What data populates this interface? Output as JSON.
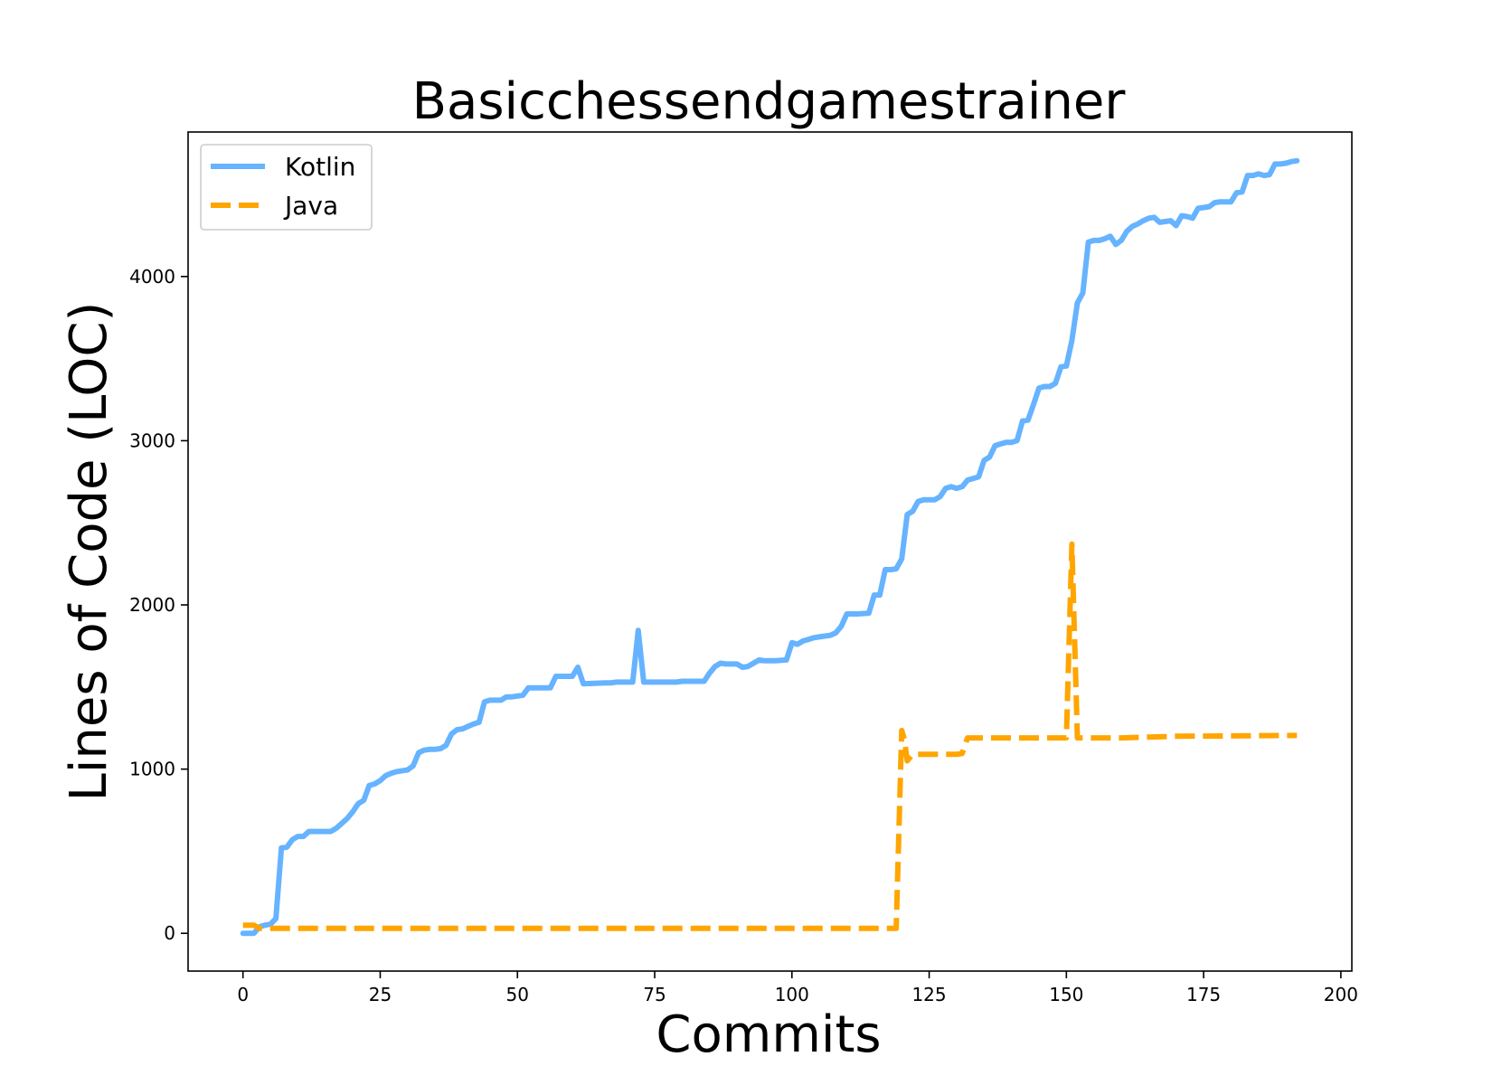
{
  "chart_data": {
    "type": "line",
    "title": "Basicchessendgamestrainer",
    "xlabel": "Commits",
    "ylabel": "Lines of Code (LOC)",
    "xlim": [
      -10,
      202
    ],
    "ylim": [
      -230,
      4880
    ],
    "xticks": [
      0,
      25,
      50,
      75,
      100,
      125,
      150,
      175,
      200
    ],
    "yticks": [
      0,
      1000,
      2000,
      3000,
      4000
    ],
    "grid": false,
    "legend_position": "top-left",
    "series": [
      {
        "name": "Kotlin",
        "color": "#66b3ff",
        "style": "solid",
        "points": [
          [
            0,
            0
          ],
          [
            2,
            0
          ],
          [
            3,
            40
          ],
          [
            4,
            50
          ],
          [
            5,
            55
          ],
          [
            6,
            90
          ],
          [
            7,
            520
          ],
          [
            8,
            525
          ],
          [
            9,
            570
          ],
          [
            10,
            590
          ],
          [
            11,
            590
          ],
          [
            12,
            620
          ],
          [
            14,
            620
          ],
          [
            16,
            620
          ],
          [
            17,
            640
          ],
          [
            18,
            670
          ],
          [
            19,
            700
          ],
          [
            20,
            740
          ],
          [
            21,
            790
          ],
          [
            22,
            810
          ],
          [
            23,
            900
          ],
          [
            24,
            910
          ],
          [
            25,
            930
          ],
          [
            26,
            960
          ],
          [
            27,
            975
          ],
          [
            28,
            985
          ],
          [
            29,
            990
          ],
          [
            30,
            995
          ],
          [
            31,
            1020
          ],
          [
            32,
            1100
          ],
          [
            33,
            1115
          ],
          [
            34,
            1120
          ],
          [
            35,
            1120
          ],
          [
            36,
            1125
          ],
          [
            37,
            1145
          ],
          [
            38,
            1215
          ],
          [
            39,
            1240
          ],
          [
            40,
            1245
          ],
          [
            41,
            1260
          ],
          [
            42,
            1275
          ],
          [
            43,
            1285
          ],
          [
            44,
            1410
          ],
          [
            45,
            1420
          ],
          [
            46,
            1420
          ],
          [
            47,
            1420
          ],
          [
            48,
            1440
          ],
          [
            49,
            1440
          ],
          [
            50,
            1445
          ],
          [
            51,
            1450
          ],
          [
            52,
            1495
          ],
          [
            53,
            1495
          ],
          [
            56,
            1495
          ],
          [
            57,
            1565
          ],
          [
            60,
            1565
          ],
          [
            61,
            1620
          ],
          [
            62,
            1520
          ],
          [
            66,
            1525
          ],
          [
            67,
            1525
          ],
          [
            68,
            1530
          ],
          [
            71,
            1530
          ],
          [
            72,
            1845
          ],
          [
            73,
            1530
          ],
          [
            79,
            1530
          ],
          [
            80,
            1535
          ],
          [
            84,
            1535
          ],
          [
            85,
            1585
          ],
          [
            86,
            1625
          ],
          [
            87,
            1645
          ],
          [
            88,
            1640
          ],
          [
            90,
            1640
          ],
          [
            91,
            1620
          ],
          [
            92,
            1625
          ],
          [
            93,
            1645
          ],
          [
            94,
            1665
          ],
          [
            95,
            1660
          ],
          [
            97,
            1660
          ],
          [
            99,
            1665
          ],
          [
            100,
            1770
          ],
          [
            101,
            1760
          ],
          [
            102,
            1780
          ],
          [
            103,
            1790
          ],
          [
            104,
            1800
          ],
          [
            105,
            1805
          ],
          [
            106,
            1810
          ],
          [
            107,
            1815
          ],
          [
            108,
            1830
          ],
          [
            109,
            1870
          ],
          [
            110,
            1945
          ],
          [
            112,
            1945
          ],
          [
            114,
            1950
          ],
          [
            115,
            2060
          ],
          [
            116,
            2060
          ],
          [
            117,
            2215
          ],
          [
            118,
            2215
          ],
          [
            119,
            2220
          ],
          [
            120,
            2280
          ],
          [
            121,
            2550
          ],
          [
            122,
            2570
          ],
          [
            123,
            2630
          ],
          [
            124,
            2640
          ],
          [
            126,
            2640
          ],
          [
            127,
            2660
          ],
          [
            128,
            2710
          ],
          [
            129,
            2720
          ],
          [
            130,
            2710
          ],
          [
            131,
            2720
          ],
          [
            132,
            2760
          ],
          [
            133,
            2770
          ],
          [
            134,
            2780
          ],
          [
            135,
            2880
          ],
          [
            136,
            2900
          ],
          [
            137,
            2970
          ],
          [
            138,
            2980
          ],
          [
            139,
            2990
          ],
          [
            140,
            2990
          ],
          [
            141,
            3000
          ],
          [
            142,
            3120
          ],
          [
            143,
            3125
          ],
          [
            144,
            3220
          ],
          [
            145,
            3320
          ],
          [
            146,
            3330
          ],
          [
            147,
            3330
          ],
          [
            148,
            3350
          ],
          [
            149,
            3450
          ],
          [
            150,
            3455
          ],
          [
            151,
            3610
          ],
          [
            152,
            3840
          ],
          [
            153,
            3900
          ],
          [
            154,
            4210
          ],
          [
            155,
            4220
          ],
          [
            156,
            4220
          ],
          [
            157,
            4230
          ],
          [
            158,
            4245
          ],
          [
            159,
            4195
          ],
          [
            160,
            4220
          ],
          [
            161,
            4275
          ],
          [
            162,
            4305
          ],
          [
            163,
            4320
          ],
          [
            164,
            4340
          ],
          [
            165,
            4355
          ],
          [
            166,
            4360
          ],
          [
            167,
            4330
          ],
          [
            168,
            4335
          ],
          [
            169,
            4340
          ],
          [
            170,
            4310
          ],
          [
            171,
            4370
          ],
          [
            172,
            4365
          ],
          [
            173,
            4355
          ],
          [
            174,
            4415
          ],
          [
            175,
            4420
          ],
          [
            176,
            4425
          ],
          [
            177,
            4450
          ],
          [
            178,
            4455
          ],
          [
            180,
            4455
          ],
          [
            181,
            4510
          ],
          [
            182,
            4515
          ],
          [
            183,
            4615
          ],
          [
            184,
            4615
          ],
          [
            185,
            4625
          ],
          [
            186,
            4615
          ],
          [
            187,
            4620
          ],
          [
            188,
            4685
          ],
          [
            189,
            4685
          ],
          [
            190,
            4690
          ],
          [
            191,
            4700
          ],
          [
            192,
            4705
          ]
        ]
      },
      {
        "name": "Java",
        "color": "#ffa500",
        "style": "dashed",
        "points": [
          [
            0,
            50
          ],
          [
            2,
            50
          ],
          [
            3,
            30
          ],
          [
            60,
            30
          ],
          [
            119,
            30
          ],
          [
            120,
            1235
          ],
          [
            120.5,
            1180
          ],
          [
            121,
            1050
          ],
          [
            122,
            1090
          ],
          [
            130,
            1090
          ],
          [
            131,
            1095
          ],
          [
            132,
            1190
          ],
          [
            140,
            1190
          ],
          [
            150,
            1190
          ],
          [
            151,
            2370
          ],
          [
            152,
            1190
          ],
          [
            160,
            1190
          ],
          [
            170,
            1200
          ],
          [
            192,
            1205
          ]
        ]
      }
    ]
  }
}
